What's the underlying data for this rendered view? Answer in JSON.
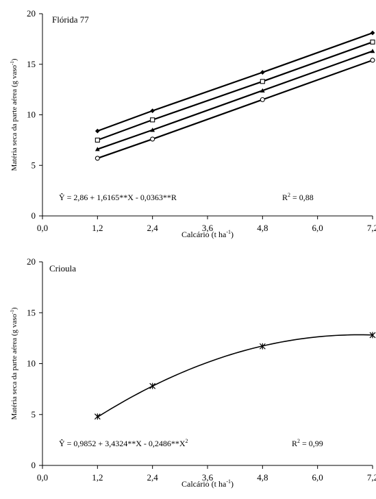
{
  "chart_data": [
    {
      "type": "line",
      "title": "Flórida 77",
      "xlabel": "Calcário (t ha",
      "xlabel_sup": "-1",
      "xlabel_end": ")",
      "ylabel": "Matéria seca da parte aérea (g vaso",
      "ylabel_sup": "-1",
      "ylabel_end": ")",
      "xlim": [
        0,
        7.2
      ],
      "ylim": [
        0,
        20
      ],
      "xticks": [
        "0,0",
        "1,2",
        "2,4",
        "3,6",
        "4,8",
        "6,0",
        "7,2"
      ],
      "yticks": [
        "0",
        "5",
        "10",
        "15",
        "20"
      ],
      "x": [
        1.2,
        2.4,
        4.8,
        7.2
      ],
      "series": [
        {
          "marker": "diamond",
          "values": [
            8.4,
            10.4,
            14.2,
            18.1
          ]
        },
        {
          "marker": "square",
          "values": [
            7.5,
            9.5,
            13.3,
            17.2
          ]
        },
        {
          "marker": "triangle",
          "values": [
            6.6,
            8.5,
            12.4,
            16.3
          ]
        },
        {
          "marker": "circle",
          "values": [
            5.7,
            7.6,
            11.5,
            15.4
          ]
        }
      ],
      "fit": "linear",
      "equation": "Ŷ = 2,86 + 1,6165**X - 0,0363**R",
      "r2_label": "R",
      "r2_sup": "2",
      "r2_value": " = 0,88",
      "grid": false
    },
    {
      "type": "line",
      "title": "Crioula",
      "xlabel": "Calcário (t ha",
      "xlabel_sup": "-1",
      "xlabel_end": ")",
      "ylabel": "Matéria seca da parte aérea (g vaso",
      "ylabel_sup": "-1",
      "ylabel_end": ")",
      "xlim": [
        0,
        7.2
      ],
      "ylim": [
        0,
        20
      ],
      "xticks": [
        "0,0",
        "1,2",
        "2,4",
        "3,6",
        "4,8",
        "6,0",
        "7,2"
      ],
      "yticks": [
        "0",
        "5",
        "10",
        "15",
        "20"
      ],
      "x": [
        1.2,
        2.4,
        4.8,
        7.2
      ],
      "series": [
        {
          "marker": "asterisk",
          "values": [
            4.8,
            7.8,
            11.7,
            12.8
          ]
        }
      ],
      "fit": "quadratic",
      "coefficients": [
        0.9852,
        3.4324,
        -0.2486
      ],
      "equation": "Ŷ = 0,9852 + 3,4324**X - 0,2486**X",
      "equation_sup": "2",
      "r2_label": "R",
      "r2_sup": "2",
      "r2_value": " = 0,99",
      "grid": false
    }
  ]
}
